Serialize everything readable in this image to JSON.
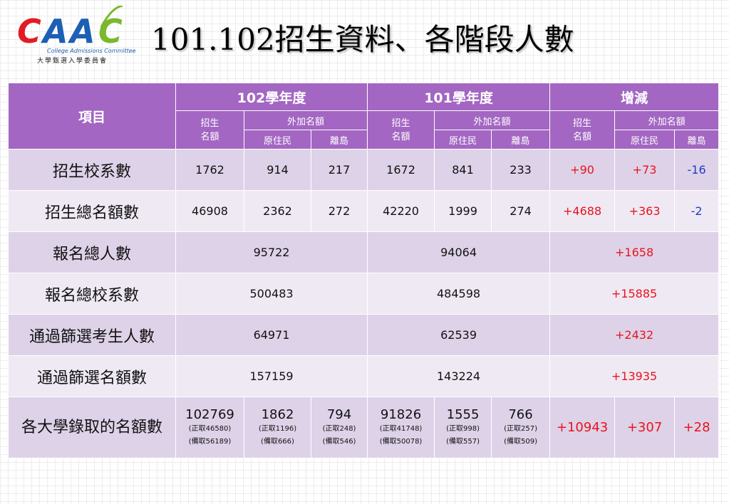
{
  "logo": {
    "mark": "CAAC",
    "english": "College Admissions Committee",
    "chinese": "大學甄選入學委員會"
  },
  "title": "101.102招生資料、各階段人數",
  "colors": {
    "header": "#a366c2",
    "row_dark": "#ded2e8",
    "row_light": "#efe9f4",
    "positive": "#e8141c",
    "negative": "#1a3ec8"
  },
  "header": {
    "item": "項目",
    "y102": "102學年度",
    "y101": "101學年度",
    "diff": "增減",
    "quota": "招生\n名額",
    "extra": "外加名額",
    "aboriginal": "原住民",
    "island": "離島"
  },
  "rows": {
    "r1": {
      "label": "招生校系數",
      "v": [
        "1762",
        "914",
        "217",
        "1672",
        "841",
        "233",
        "+90",
        "+73",
        "-16"
      ]
    },
    "r2": {
      "label": "招生總名額數",
      "v": [
        "46908",
        "2362",
        "272",
        "42220",
        "1999",
        "274",
        "+4688",
        "+363",
        "-2"
      ]
    },
    "r3": {
      "label": "報名總人數",
      "v": [
        "95722",
        "94064",
        "+1658"
      ]
    },
    "r4": {
      "label": "報名總校系數",
      "v": [
        "500483",
        "484598",
        "+15885"
      ]
    },
    "r5": {
      "label": "通過篩選考生人數",
      "v": [
        "64971",
        "62539",
        "+2432"
      ]
    },
    "r6": {
      "label": "通過篩選名額數",
      "v": [
        "157159",
        "143224",
        "+13935"
      ]
    },
    "r7": {
      "label": "各大學錄取的名額數",
      "c1": {
        "total": "102769",
        "l1": "(正取46580)",
        "l2": "(備取56189)"
      },
      "c2": {
        "total": "1862",
        "l1": "(正取1196)",
        "l2": "(備取666)"
      },
      "c3": {
        "total": "794",
        "l1": "(正取248)",
        "l2": "(備取546)"
      },
      "c4": {
        "total": "91826",
        "l1": "(正取41748)",
        "l2": "(備取50078)"
      },
      "c5": {
        "total": "1555",
        "l1": "(正取998)",
        "l2": "(備取557)"
      },
      "c6": {
        "total": "766",
        "l1": "(正取257)",
        "l2": "(備取509)"
      },
      "d": [
        "+10943",
        "+307",
        "+28"
      ]
    }
  }
}
